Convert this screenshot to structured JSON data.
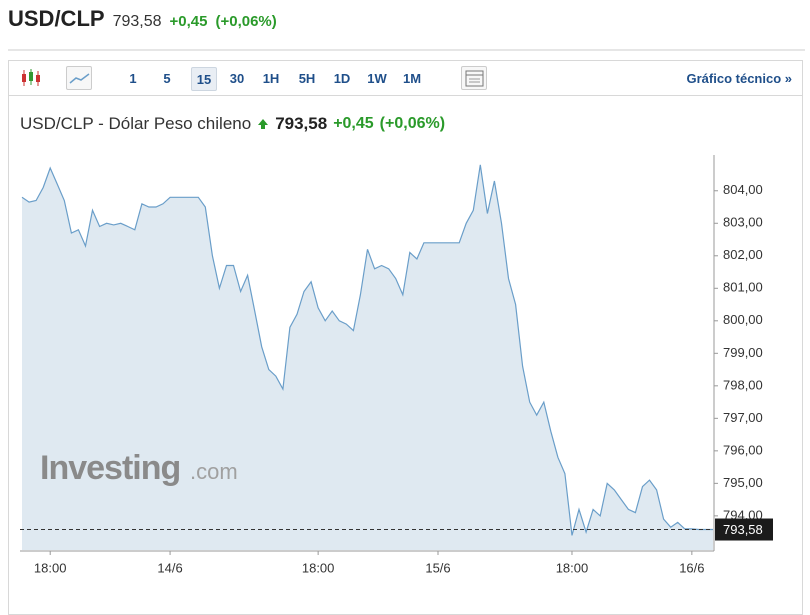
{
  "header": {
    "symbol": "USD/CLP",
    "price": "793,58",
    "change": "+0,45",
    "change_pct": "(+0,06%)"
  },
  "toolbar": {
    "intervals": [
      "1",
      "5",
      "15",
      "30",
      "1H",
      "5H",
      "1D",
      "1W",
      "1M"
    ],
    "active": "15",
    "link": "Gráfico técnico »"
  },
  "chart_data": {
    "type": "line",
    "title": "USD/CLP - Dólar Peso chileno",
    "price": "793,58",
    "change": "+0,45",
    "change_pct": "(+0,06%)",
    "watermark": {
      "brand": "Investing",
      "suffix": ".com"
    },
    "categories": [
      null,
      null,
      null,
      null,
      "18:00",
      null,
      null,
      null,
      null,
      null,
      null,
      null,
      null,
      null,
      null,
      null,
      null,
      null,
      null,
      null,
      null,
      "14/6",
      null,
      null,
      null,
      null,
      null,
      null,
      null,
      null,
      null,
      null,
      null,
      null,
      null,
      null,
      null,
      null,
      null,
      null,
      null,
      null,
      "18:00",
      null,
      null,
      null,
      null,
      null,
      null,
      null,
      null,
      null,
      null,
      null,
      null,
      null,
      null,
      null,
      null,
      "15/6",
      null,
      null,
      null,
      null,
      null,
      null,
      null,
      null,
      null,
      null,
      null,
      null,
      null,
      null,
      null,
      null,
      null,
      null,
      "18:00",
      null,
      null,
      null,
      null,
      null,
      null,
      null,
      null,
      null,
      null,
      null,
      null,
      null,
      null,
      null,
      null,
      "16/6",
      null,
      null,
      null
    ],
    "series": [
      {
        "name": "USD/CLP",
        "color": "#6a9ec9",
        "fill": "#dfe9f1",
        "values": [
          803.8,
          803.65,
          803.7,
          804.1,
          804.7,
          804.2,
          803.7,
          802.7,
          802.8,
          802.3,
          803.4,
          802.9,
          803.0,
          802.95,
          803.0,
          802.9,
          802.8,
          803.6,
          803.5,
          803.5,
          803.6,
          803.8,
          803.8,
          803.8,
          803.8,
          803.8,
          803.5,
          802.0,
          801.0,
          801.7,
          801.7,
          800.9,
          801.4,
          800.3,
          799.2,
          798.5,
          798.3,
          797.9,
          799.8,
          800.2,
          800.9,
          801.2,
          800.4,
          800.0,
          800.3,
          800.0,
          799.9,
          799.7,
          800.8,
          802.2,
          801.6,
          801.7,
          801.6,
          801.3,
          800.8,
          802.1,
          801.9,
          802.4,
          802.4,
          802.4,
          802.4,
          802.4,
          802.4,
          803.0,
          803.4,
          804.8,
          803.3,
          804.3,
          803.0,
          801.3,
          800.5,
          798.6,
          797.5,
          797.1,
          797.5,
          796.6,
          795.8,
          795.3,
          793.4,
          794.2,
          793.5,
          794.2,
          794.0,
          795.0,
          794.8,
          794.5,
          794.2,
          794.1,
          794.9,
          795.1,
          794.8,
          793.9,
          793.65,
          793.8,
          793.6,
          793.6,
          793.58,
          793.58,
          793.58
        ]
      }
    ],
    "last": {
      "value": 793.58,
      "label": "793,58"
    },
    "ylim": [
      792.95,
      805.1
    ],
    "yticks": [
      {
        "value": 794,
        "label": "794,00"
      },
      {
        "value": 795,
        "label": "795,00"
      },
      {
        "value": 796,
        "label": "796,00"
      },
      {
        "value": 797,
        "label": "797,00"
      },
      {
        "value": 798,
        "label": "798,00"
      },
      {
        "value": 799,
        "label": "799,00"
      },
      {
        "value": 800,
        "label": "800,00"
      },
      {
        "value": 801,
        "label": "801,00"
      },
      {
        "value": 802,
        "label": "802,00"
      },
      {
        "value": 803,
        "label": "803,00"
      },
      {
        "value": 804,
        "label": "804,00"
      }
    ],
    "grid": false
  }
}
